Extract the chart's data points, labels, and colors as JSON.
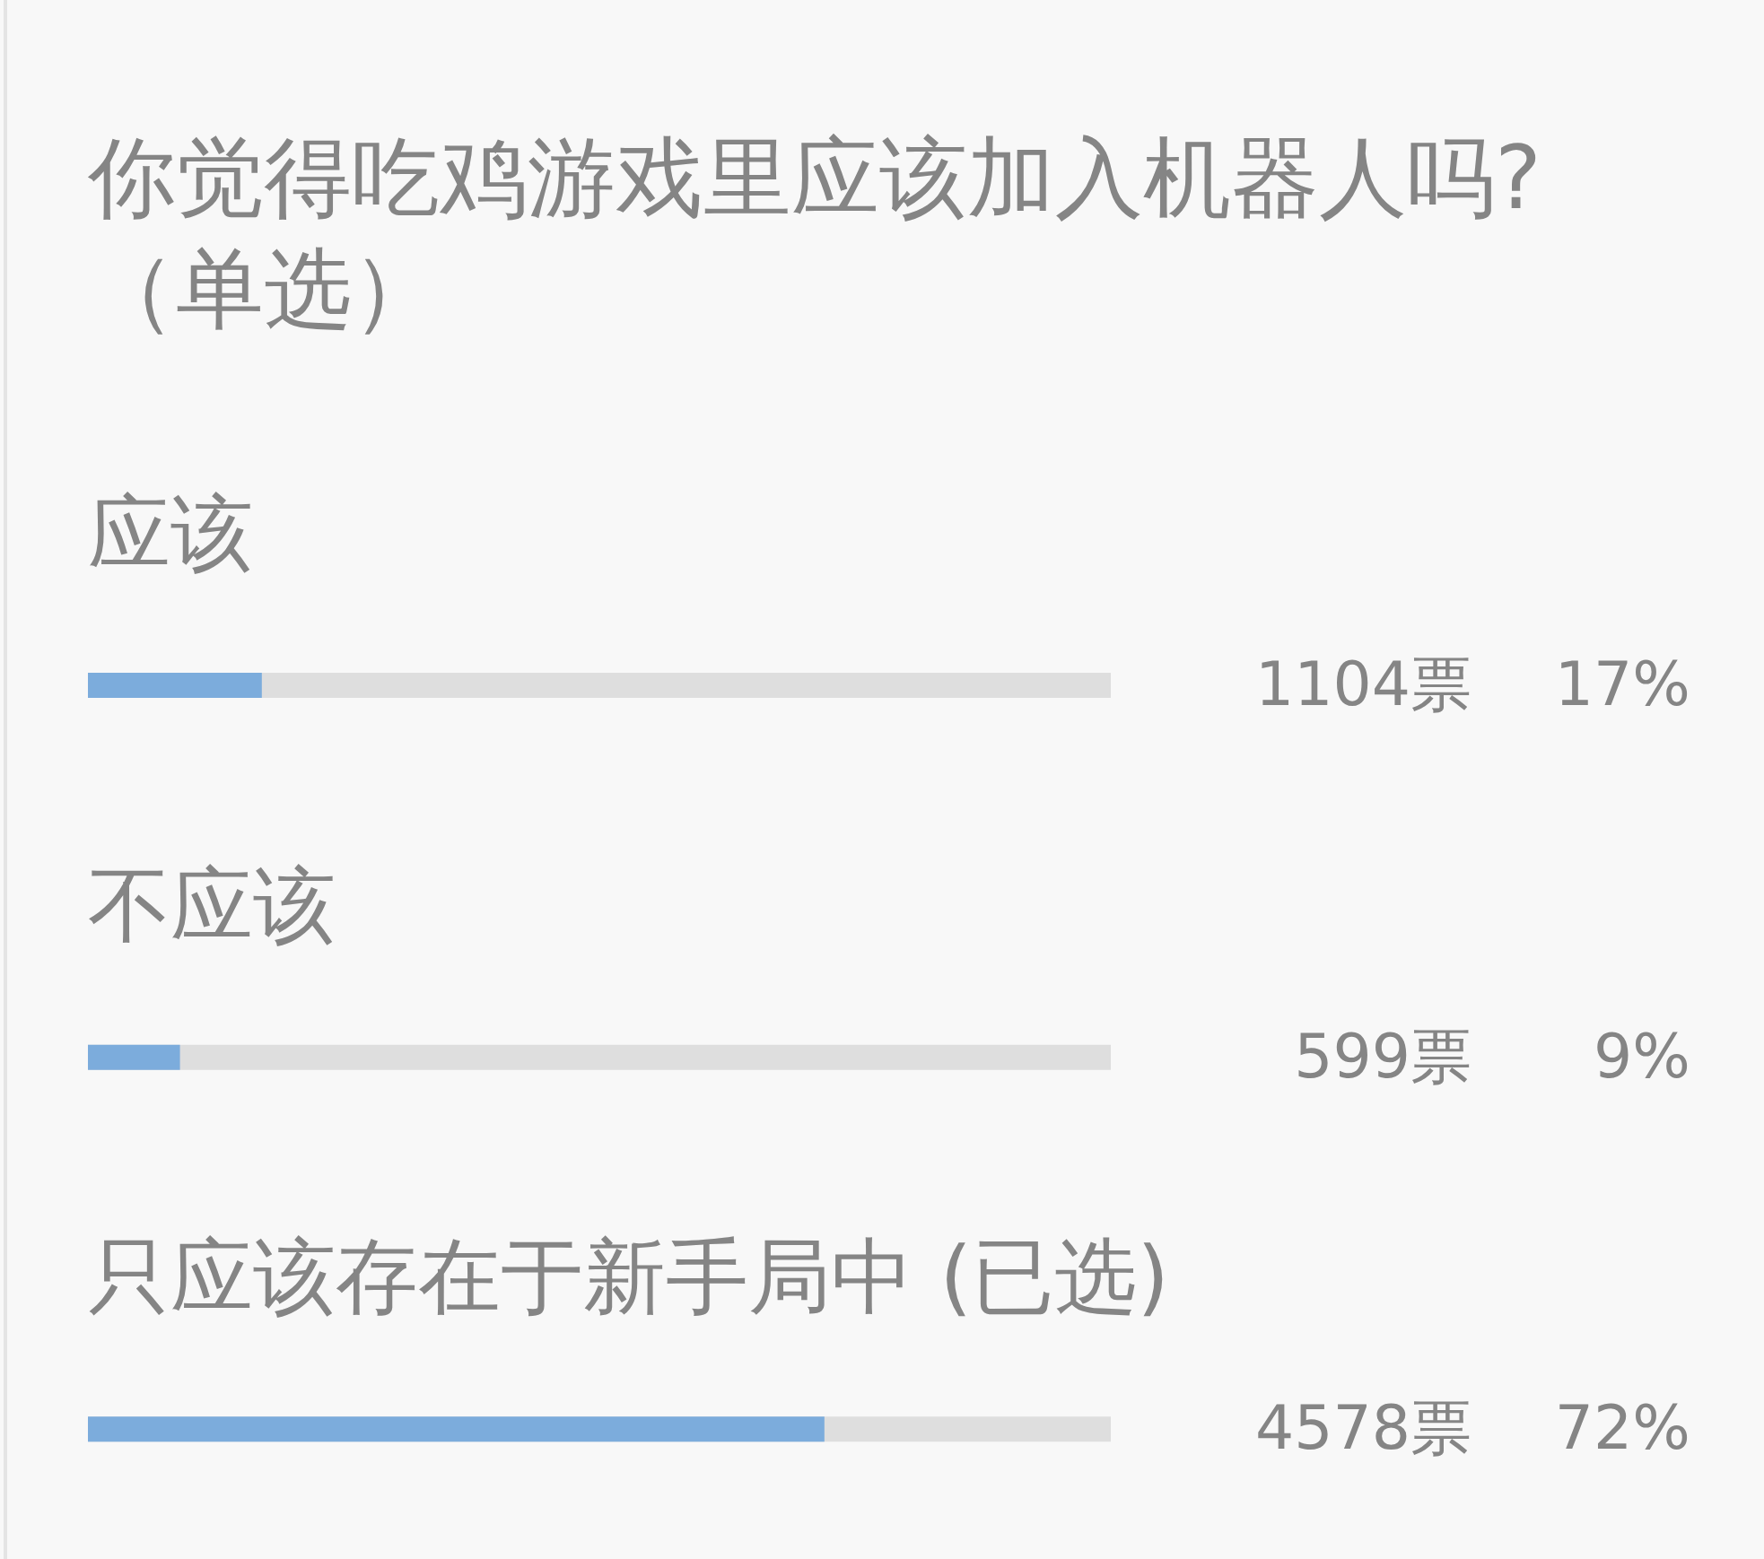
{
  "chart_data": {
    "type": "bar",
    "orientation": "horizontal",
    "title": "你觉得吃鸡游戏里应该加入机器人吗?（单选）",
    "categories": [
      "应该",
      "不应该",
      "只应该存在于新手局中 (已选)"
    ],
    "values": [
      17,
      9,
      72
    ],
    "color": "#7cacdc",
    "value_labels": [
      "17%",
      "9%",
      "72%"
    ],
    "xlim": [
      0,
      100
    ],
    "tick_labels": "y",
    "annotations": [
      "1104票",
      "599票",
      "4578票"
    ]
  }
}
